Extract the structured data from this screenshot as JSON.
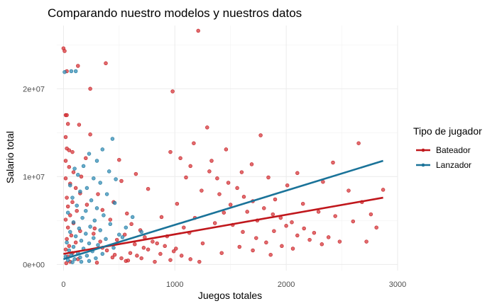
{
  "chart_data": {
    "type": "scatter",
    "title": "Comparando nuestro modelos y nuestros datos",
    "xlabel": "Juegos totales",
    "ylabel": "Salario total",
    "xlim": [
      -60,
      3000
    ],
    "ylim": [
      -700000,
      27200000
    ],
    "x_ticks": [
      0,
      1000,
      2000,
      3000
    ],
    "x_tick_labels": [
      "0",
      "1000",
      "2000",
      "3000"
    ],
    "y_ticks": [
      0,
      10000000,
      20000000
    ],
    "y_tick_labels": [
      "0e+00",
      "1e+07",
      "2e+07"
    ],
    "grid": true,
    "legend": {
      "title": "Tipo de jugador",
      "position": "right",
      "entries": [
        "Bateador",
        "Lanzador"
      ]
    },
    "colors": {
      "Bateador": "#c0171c",
      "Lanzador": "#1a7399",
      "Bateador_point": "#d73035",
      "Lanzador_point": "#2c8bb5"
    },
    "series": [
      {
        "name": "Bateador",
        "points": [
          [
            0,
            24600000
          ],
          [
            10,
            24300000
          ],
          [
            30,
            22000000
          ],
          [
            130,
            22600000
          ],
          [
            20,
            17000000
          ],
          [
            30,
            17000000
          ],
          [
            40,
            16000000
          ],
          [
            140,
            15900000
          ],
          [
            20,
            14500000
          ],
          [
            30,
            13200000
          ],
          [
            50,
            13000000
          ],
          [
            80,
            12800000
          ],
          [
            20,
            11800000
          ],
          [
            50,
            11100000
          ],
          [
            90,
            10500000
          ],
          [
            20,
            9800000
          ],
          [
            60,
            9200000
          ],
          [
            110,
            8700000
          ],
          [
            150,
            8100000
          ],
          [
            30,
            7600000
          ],
          [
            80,
            7100000
          ],
          [
            40,
            6600000
          ],
          [
            120,
            6100000
          ],
          [
            60,
            5600000
          ],
          [
            20,
            5100000
          ],
          [
            90,
            4700000
          ],
          [
            40,
            4200000
          ],
          [
            150,
            3800000
          ],
          [
            70,
            3300000
          ],
          [
            30,
            2900000
          ],
          [
            110,
            2500000
          ],
          [
            50,
            2100000
          ],
          [
            20,
            1700000
          ],
          [
            80,
            1300000
          ],
          [
            40,
            900000
          ],
          [
            130,
            600000
          ],
          [
            60,
            300000
          ],
          [
            25,
            150000
          ],
          [
            380,
            22900000
          ],
          [
            240,
            14800000
          ],
          [
            500,
            11900000
          ],
          [
            520,
            9500000
          ],
          [
            310,
            8000000
          ],
          [
            450,
            7100000
          ],
          [
            350,
            6200000
          ],
          [
            570,
            5800000
          ],
          [
            420,
            5100000
          ],
          [
            610,
            4600000
          ],
          [
            280,
            4100000
          ],
          [
            690,
            3900000
          ],
          [
            550,
            3400000
          ],
          [
            730,
            3100000
          ],
          [
            480,
            2800000
          ],
          [
            800,
            2600000
          ],
          [
            640,
            2300000
          ],
          [
            910,
            2100000
          ],
          [
            350,
            1900000
          ],
          [
            760,
            1700000
          ],
          [
            990,
            1500000
          ],
          [
            600,
            1300000
          ],
          [
            870,
            1200000
          ],
          [
            1060,
            1000000
          ],
          [
            440,
            800000
          ],
          [
            700,
            700000
          ],
          [
            1140,
            600000
          ],
          [
            960,
            500000
          ],
          [
            560,
            400000
          ],
          [
            820,
            300000
          ],
          [
            1220,
            300000
          ],
          [
            300,
            200000
          ],
          [
            1210,
            26600000
          ],
          [
            980,
            19700000
          ],
          [
            1290,
            15600000
          ],
          [
            1170,
            13800000
          ],
          [
            960,
            12800000
          ],
          [
            1050,
            12100000
          ],
          [
            1140,
            11200000
          ],
          [
            1310,
            10600000
          ],
          [
            1380,
            9800000
          ],
          [
            1480,
            9300000
          ],
          [
            1560,
            8700000
          ],
          [
            1400,
            8000000
          ],
          [
            1620,
            7700000
          ],
          [
            1700,
            7200000
          ],
          [
            1500,
            6800000
          ],
          [
            1800,
            6400000
          ],
          [
            1650,
            6000000
          ],
          [
            1880,
            5700000
          ],
          [
            1950,
            5300000
          ],
          [
            1740,
            5000000
          ],
          [
            2050,
            4800000
          ],
          [
            2000,
            4400000
          ],
          [
            2160,
            4100000
          ],
          [
            1890,
            3800000
          ],
          [
            2250,
            3600000
          ],
          [
            2100,
            3300000
          ],
          [
            2380,
            3100000
          ],
          [
            2210,
            2800000
          ],
          [
            2480,
            2600000
          ],
          [
            2320,
            2300000
          ],
          [
            1580,
            2000000
          ],
          [
            1700,
            1600000
          ],
          [
            1420,
            1300000
          ],
          [
            1860,
            1100000
          ],
          [
            2650,
            13800000
          ],
          [
            2420,
            11600000
          ],
          [
            2330,
            9400000
          ],
          [
            2560,
            8400000
          ],
          [
            2680,
            7100000
          ],
          [
            2870,
            8500000
          ],
          [
            2760,
            5700000
          ],
          [
            2600,
            4900000
          ],
          [
            2810,
            4200000
          ],
          [
            2720,
            2600000
          ],
          [
            1770,
            14700000
          ],
          [
            1330,
            11800000
          ],
          [
            1100,
            9900000
          ],
          [
            1240,
            8400000
          ],
          [
            1020,
            6900000
          ],
          [
            1360,
            4700000
          ],
          [
            1130,
            3600000
          ],
          [
            1250,
            2400000
          ],
          [
            1010,
            1800000
          ],
          [
            880,
            5400000
          ],
          [
            760,
            8600000
          ],
          [
            650,
            10300000
          ],
          [
            240,
            20000000
          ],
          [
            200,
            12100000
          ],
          [
            160,
            10000000
          ],
          [
            210,
            6800000
          ],
          [
            270,
            3500000
          ],
          [
            330,
            2600000
          ],
          [
            390,
            1600000
          ],
          [
            460,
            1100000
          ],
          [
            520,
            700000
          ],
          [
            580,
            450000
          ],
          [
            660,
            1000000
          ],
          [
            720,
            1900000
          ],
          [
            840,
            2400000
          ],
          [
            930,
            3200000
          ],
          [
            1080,
            4200000
          ],
          [
            1180,
            5300000
          ],
          [
            1440,
            5900000
          ],
          [
            1520,
            4500000
          ],
          [
            1610,
            3700000
          ],
          [
            1730,
            3000000
          ],
          [
            1820,
            2500000
          ],
          [
            1960,
            2100000
          ],
          [
            2060,
            1800000
          ],
          [
            1900,
            7400000
          ],
          [
            2150,
            6900000
          ],
          [
            2290,
            6000000
          ],
          [
            2440,
            5500000
          ],
          [
            2010,
            9000000
          ],
          [
            1840,
            9900000
          ],
          [
            1600,
            10500000
          ],
          [
            1690,
            11400000
          ],
          [
            2100,
            10400000
          ],
          [
            1460,
            13100000
          ]
        ]
      },
      {
        "name": "Lanzador",
        "points": [
          [
            70,
            22000000
          ],
          [
            110,
            22000000
          ],
          [
            10,
            21900000
          ],
          [
            440,
            14300000
          ],
          [
            350,
            13100000
          ],
          [
            230,
            12600000
          ],
          [
            300,
            11800000
          ],
          [
            180,
            11200000
          ],
          [
            100,
            10900000
          ],
          [
            410,
            10600000
          ],
          [
            130,
            10200000
          ],
          [
            270,
            9800000
          ],
          [
            470,
            9700000
          ],
          [
            330,
            9300000
          ],
          [
            60,
            9000000
          ],
          [
            210,
            8700000
          ],
          [
            150,
            8300000
          ],
          [
            390,
            8000000
          ],
          [
            80,
            7600000
          ],
          [
            250,
            7300000
          ],
          [
            460,
            7000000
          ],
          [
            120,
            6700000
          ],
          [
            300,
            6400000
          ],
          [
            200,
            6100000
          ],
          [
            40,
            5900000
          ],
          [
            360,
            5600000
          ],
          [
            170,
            5300000
          ],
          [
            280,
            5000000
          ],
          [
            90,
            4800000
          ],
          [
            420,
            4600000
          ],
          [
            240,
            4300000
          ],
          [
            140,
            4100000
          ],
          [
            330,
            3900000
          ],
          [
            60,
            3700000
          ],
          [
            200,
            3500000
          ],
          [
            500,
            3400000
          ],
          [
            110,
            3200000
          ],
          [
            270,
            3000000
          ],
          [
            380,
            2900000
          ],
          [
            160,
            2700000
          ],
          [
            30,
            2500000
          ],
          [
            230,
            2400000
          ],
          [
            310,
            2200000
          ],
          [
            90,
            2000000
          ],
          [
            450,
            1900000
          ],
          [
            180,
            1800000
          ],
          [
            50,
            1600000
          ],
          [
            260,
            1500000
          ],
          [
            130,
            1300000
          ],
          [
            350,
            1200000
          ],
          [
            70,
            1100000
          ],
          [
            210,
            1000000
          ],
          [
            20,
            900000
          ],
          [
            150,
            800000
          ],
          [
            290,
            700000
          ],
          [
            100,
            600000
          ],
          [
            40,
            500000
          ],
          [
            230,
            400000
          ],
          [
            160,
            300000
          ],
          [
            80,
            250000
          ],
          [
            620,
            5400000
          ],
          [
            560,
            4200000
          ],
          [
            700,
            3700000
          ],
          [
            530,
            3100000
          ]
        ]
      }
    ],
    "trend_lines": [
      {
        "name": "Bateador",
        "x": [
          0,
          2870
        ],
        "y": [
          1200000,
          7600000
        ]
      },
      {
        "name": "Lanzador",
        "x": [
          0,
          2870
        ],
        "y": [
          600000,
          11800000
        ]
      }
    ]
  }
}
